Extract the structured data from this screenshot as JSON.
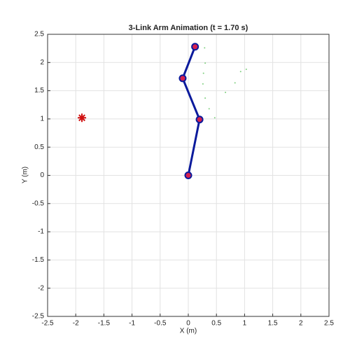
{
  "chart_data": {
    "type": "line",
    "title": "3-Link Arm Animation (t = 1.70 s)",
    "xlabel": "X (m)",
    "ylabel": "Y (m)",
    "xlim": [
      -2.5,
      2.5
    ],
    "ylim": [
      -2.5,
      2.5
    ],
    "xticks": [
      -2.5,
      -2,
      -1.5,
      -1,
      -0.5,
      0,
      0.5,
      1,
      1.5,
      2,
      2.5
    ],
    "yticks": [
      -2.5,
      -2,
      -1.5,
      -1,
      -0.5,
      0,
      0.5,
      1,
      1.5,
      2,
      2.5
    ],
    "grid": true,
    "series": [
      {
        "color": "#7fd07f",
        "line": false,
        "marker": "dot",
        "x": [
          0.29,
          0.3,
          0.27,
          0.26,
          0.3,
          0.37,
          0.47,
          0.66,
          0.83,
          0.93,
          1.03
        ],
        "values": [
          2.26,
          1.99,
          1.81,
          1.62,
          1.37,
          1.18,
          1.02,
          1.47,
          1.64,
          1.84,
          1.88
        ]
      },
      {
        "color": "#0a1a9c",
        "line": true,
        "marker": "circle",
        "marker_fill": "#d6204e",
        "x": [
          0,
          0.2,
          -0.1,
          0.12
        ],
        "values": [
          0,
          0.99,
          1.72,
          2.28
        ]
      },
      {
        "color": "#d01010",
        "line": false,
        "marker": "asterisk",
        "x": [
          -1.89
        ],
        "values": [
          1.02
        ]
      }
    ]
  }
}
